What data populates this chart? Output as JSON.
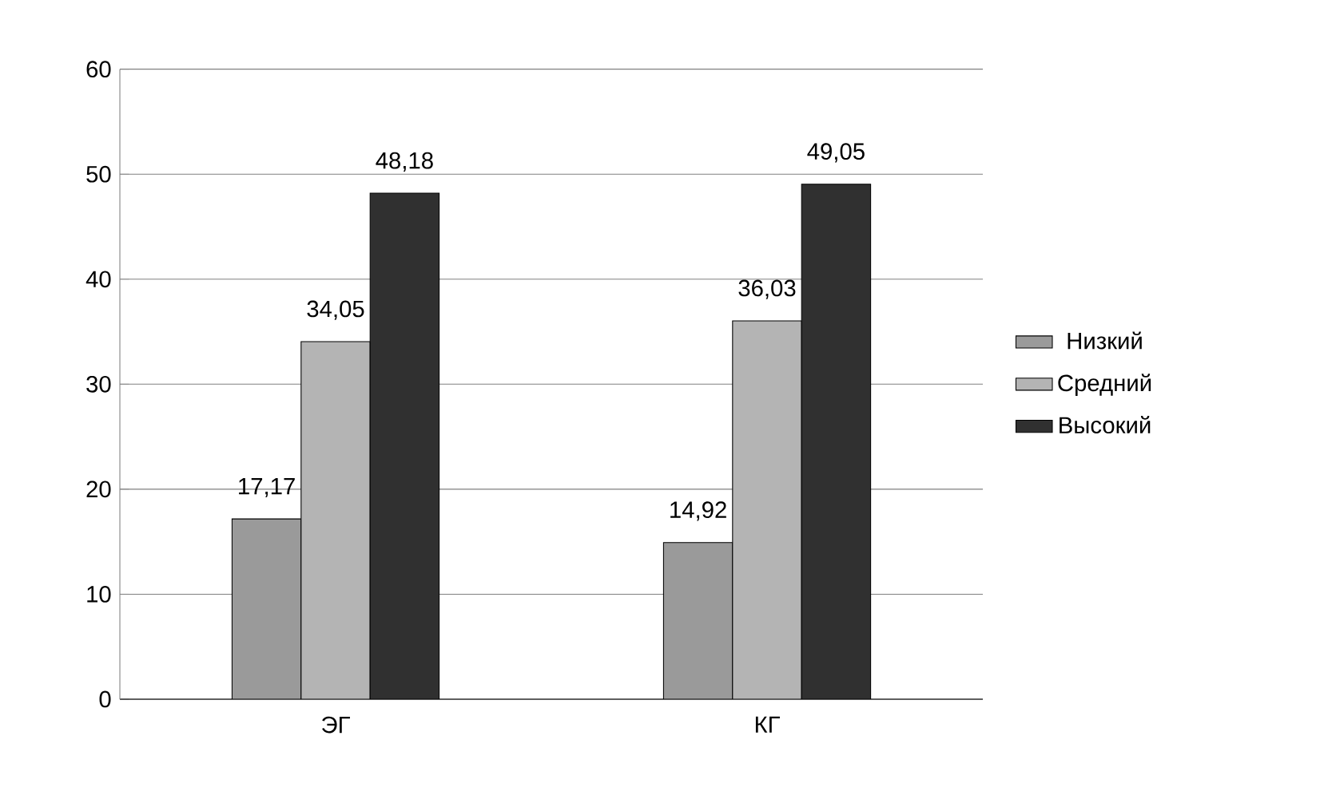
{
  "chart_data": {
    "type": "bar",
    "categories": [
      "ЭГ",
      "КГ"
    ],
    "series": [
      {
        "name": "Низкий",
        "color": "#9a9a9a",
        "values": [
          17.17,
          14.92
        ],
        "value_labels": [
          "17,17",
          "14,92"
        ]
      },
      {
        "name": "Средний",
        "color": "#b4b4b4",
        "values": [
          34.05,
          36.03
        ],
        "value_labels": [
          "34,05",
          "36,03"
        ]
      },
      {
        "name": "Высокий",
        "color": "#303030",
        "values": [
          48.18,
          49.05
        ],
        "value_labels": [
          "48,18",
          "49,05"
        ]
      }
    ],
    "ylim": [
      0,
      60
    ],
    "yticks": [
      0,
      10,
      20,
      30,
      40,
      50,
      60
    ],
    "grid": "y",
    "legend": "right"
  }
}
